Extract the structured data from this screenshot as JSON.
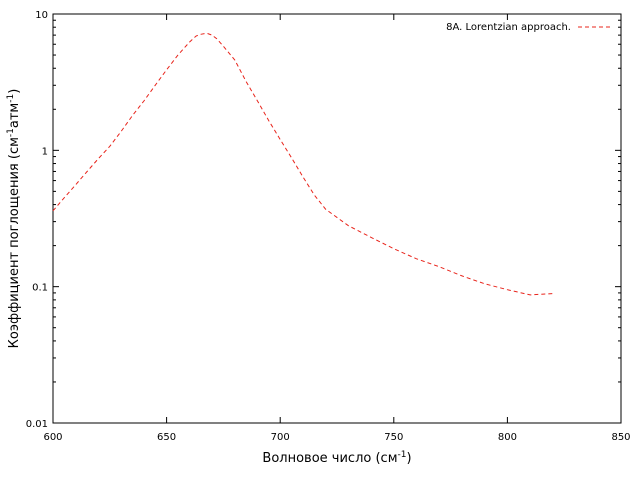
{
  "chart_data": {
    "type": "line",
    "xlabel": "Волновое число (см",
    "xlabel_sup": "-1",
    "xlabel_tail": ")",
    "ylabel": "Коэффициент поглощения (см",
    "ylabel_sup1": "-1",
    "ylabel_mid": "атм",
    "ylabel_sup2": "-1",
    "ylabel_tail": ")",
    "xlim": [
      600,
      850
    ],
    "ylim": [
      0.01,
      10
    ],
    "yscale": "log",
    "grid": false,
    "legend_position": "top-right",
    "x_ticks": [
      600,
      650,
      700,
      750,
      800,
      850
    ],
    "x_tick_labels": [
      "600",
      "650",
      "700",
      "750",
      "800",
      "850"
    ],
    "y_ticks": [
      0.01,
      0.1,
      1,
      10
    ],
    "y_tick_labels": [
      "0.01",
      "0.1",
      "1",
      "10"
    ],
    "series": [
      {
        "name": "8A. Lorentzian approach.",
        "color": "#e8241b",
        "style": "dashed",
        "x": [
          600,
          605,
          610,
          615,
          620,
          625,
          630,
          635,
          640,
          645,
          650,
          655,
          660,
          663,
          665,
          667,
          668,
          670,
          672,
          675,
          680,
          685,
          690,
          695,
          700,
          705,
          710,
          715,
          720,
          730,
          740,
          750,
          760,
          770,
          780,
          790,
          800,
          810,
          820
        ],
        "y": [
          0.36,
          0.45,
          0.56,
          0.7,
          0.87,
          1.07,
          1.38,
          1.8,
          2.3,
          3.0,
          3.9,
          5.0,
          6.2,
          6.9,
          7.1,
          7.2,
          7.2,
          7.0,
          6.6,
          5.8,
          4.6,
          3.2,
          2.3,
          1.65,
          1.2,
          0.88,
          0.64,
          0.47,
          0.37,
          0.28,
          0.23,
          0.19,
          0.16,
          0.14,
          0.12,
          0.105,
          0.095,
          0.087,
          0.089
        ]
      }
    ]
  }
}
